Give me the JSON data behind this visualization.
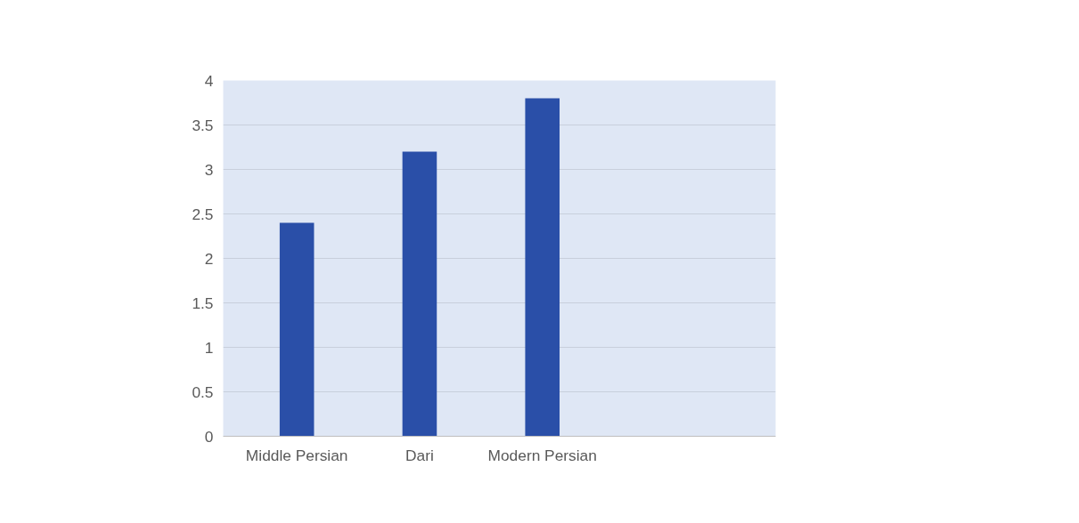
{
  "chart_data": {
    "type": "bar",
    "categories": [
      "Middle Persian",
      "Dari",
      "Modern Persian"
    ],
    "values": [
      2.4,
      3.2,
      3.8
    ],
    "color": "#2a4fa8",
    "ylim": [
      0,
      4
    ],
    "yticks": [
      0,
      0.5,
      1,
      1.5,
      2,
      2.5,
      3,
      3.5,
      4
    ],
    "grid": "y"
  }
}
